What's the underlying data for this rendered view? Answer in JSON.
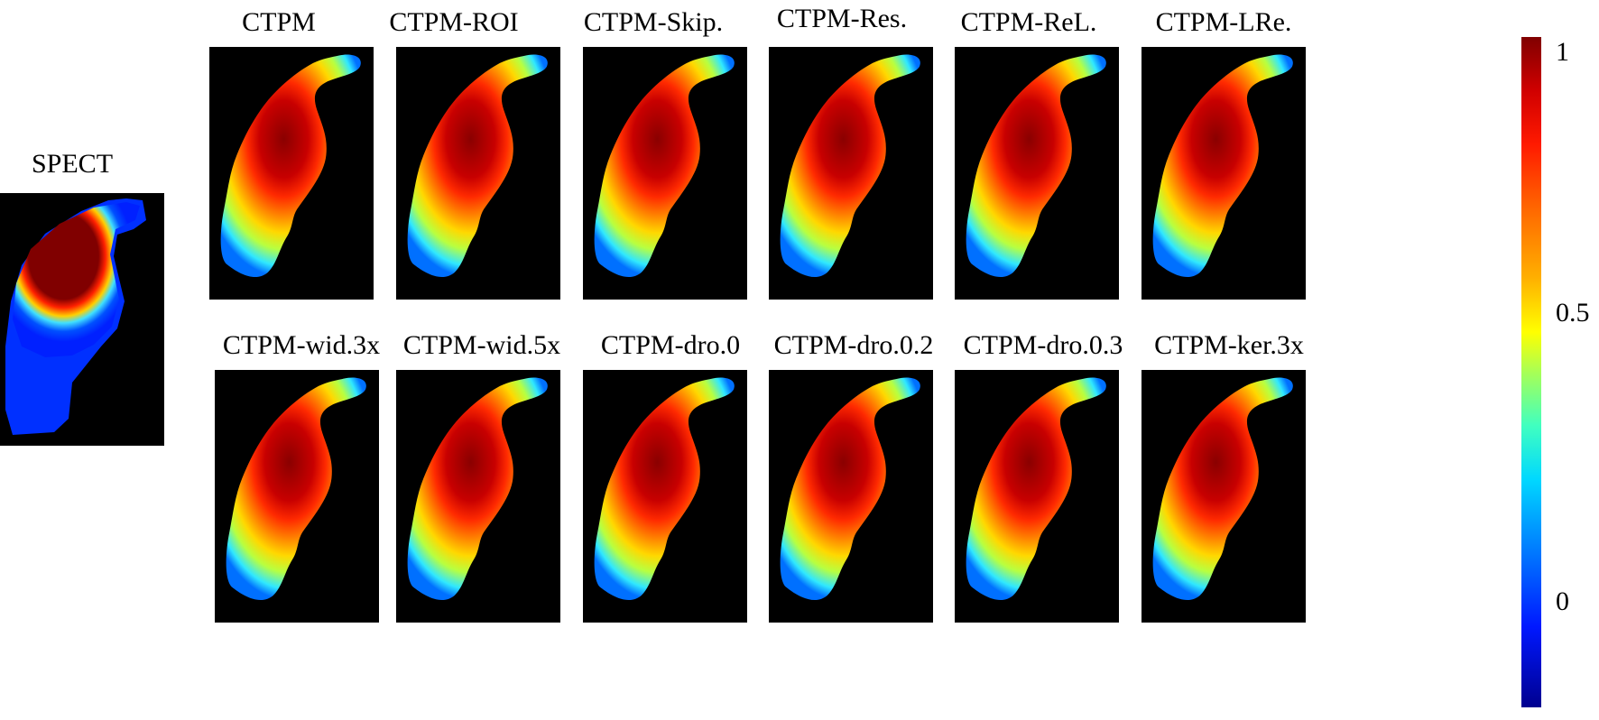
{
  "spect": {
    "label": "SPECT"
  },
  "panels_row1": [
    {
      "label": "CTPM"
    },
    {
      "label": "CTPM-ROI"
    },
    {
      "label": "CTPM-Skip."
    },
    {
      "label": "CTPM-Res."
    },
    {
      "label": "CTPM-ReL."
    },
    {
      "label": "CTPM-LRe."
    }
  ],
  "panels_row2": [
    {
      "label": "CTPM-wid.3x"
    },
    {
      "label": "CTPM-wid.5x"
    },
    {
      "label": "CTPM-dro.0"
    },
    {
      "label": "CTPM-dro.0.2"
    },
    {
      "label": "CTPM-dro.0.3"
    },
    {
      "label": "CTPM-ker.3x"
    }
  ],
  "colorbar": {
    "colormap": "jet",
    "ticks": [
      "1",
      "0.5",
      "0"
    ]
  }
}
